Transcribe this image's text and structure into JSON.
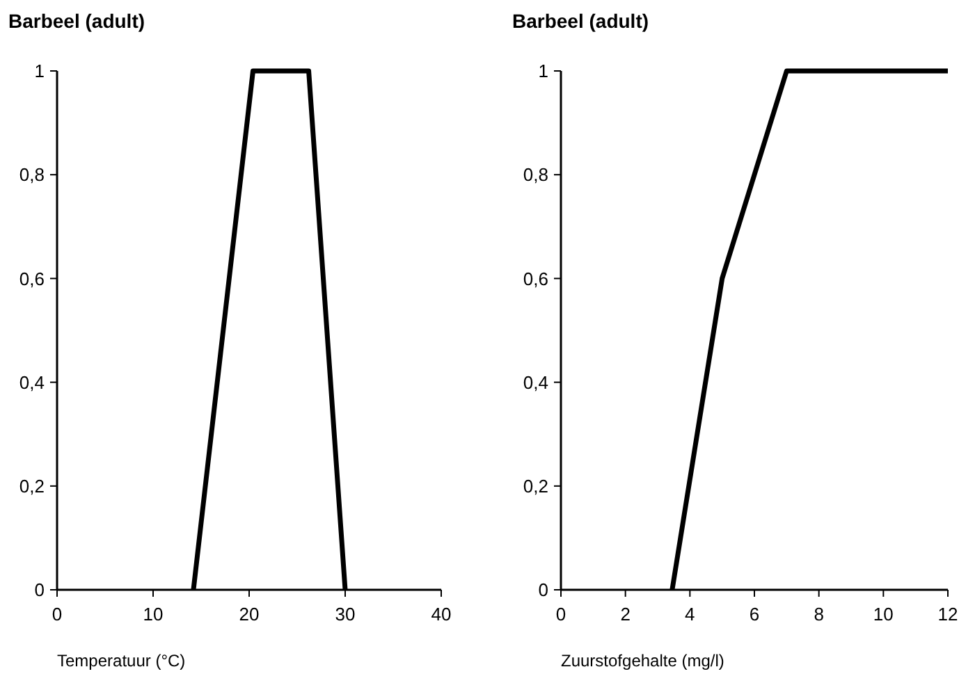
{
  "chart_data": [
    {
      "type": "line",
      "title": "Barbeel (adult)",
      "xlabel": "Temperatuur (°C)",
      "x": [
        14.2,
        20.4,
        26.2,
        30
      ],
      "values": [
        0,
        1,
        1,
        0
      ],
      "color": "#000000",
      "xlim": [
        0,
        40
      ],
      "xticks": [
        0,
        10,
        20,
        30,
        40
      ],
      "ylim": [
        0,
        1
      ],
      "yticks": [
        {
          "value": 0,
          "label": "0"
        },
        {
          "value": 0.2,
          "label": "0,2"
        },
        {
          "value": 0.4,
          "label": "0,4"
        },
        {
          "value": 0.6,
          "label": "0,6"
        },
        {
          "value": 0.8,
          "label": "0,8"
        },
        {
          "value": 1,
          "label": "1"
        }
      ],
      "grid": false,
      "marker": "none",
      "line_style": "solid"
    },
    {
      "type": "line",
      "title": "Barbeel (adult)",
      "xlabel": "Zuurstofgehalte (mg/l)",
      "x": [
        3.45,
        5,
        7,
        12
      ],
      "values": [
        0,
        0.6,
        1,
        1
      ],
      "color": "#000000",
      "xlim": [
        0,
        12
      ],
      "xticks": [
        0,
        2,
        4,
        6,
        8,
        10,
        12
      ],
      "ylim": [
        0,
        1
      ],
      "yticks": [
        {
          "value": 0,
          "label": "0"
        },
        {
          "value": 0.2,
          "label": "0,2"
        },
        {
          "value": 0.4,
          "label": "0,4"
        },
        {
          "value": 0.6,
          "label": "0,6"
        },
        {
          "value": 0.8,
          "label": "0,8"
        },
        {
          "value": 1,
          "label": "1"
        }
      ],
      "grid": false,
      "marker": "none",
      "line_style": "solid"
    }
  ]
}
